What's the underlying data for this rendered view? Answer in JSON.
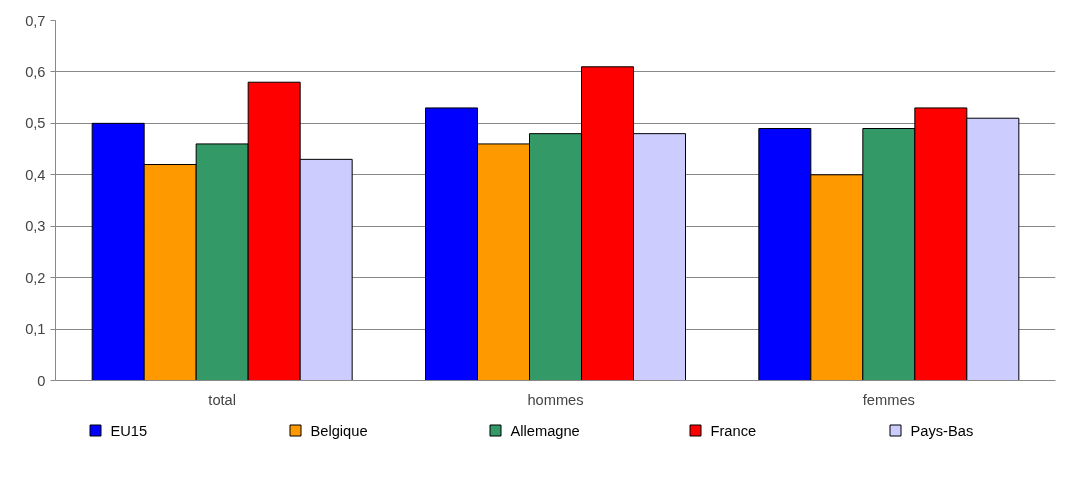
{
  "chart_data": {
    "type": "bar",
    "categories": [
      "total",
      "hommes",
      "femmes"
    ],
    "series": [
      {
        "name": "EU15",
        "color": "#0000ff",
        "values": [
          0.5,
          0.53,
          0.49
        ]
      },
      {
        "name": "Belgique",
        "color": "#ff9900",
        "values": [
          0.42,
          0.46,
          0.4
        ]
      },
      {
        "name": "Allemagne",
        "color": "#339966",
        "values": [
          0.46,
          0.48,
          0.49
        ]
      },
      {
        "name": "France",
        "color": "#ff0000",
        "values": [
          0.58,
          0.61,
          0.53
        ]
      },
      {
        "name": "Pays-Bas",
        "color": "#ccccff",
        "values": [
          0.43,
          0.48,
          0.51
        ]
      }
    ],
    "ylim": [
      0,
      0.7
    ],
    "yticks": [
      {
        "value": 0,
        "label": "0"
      },
      {
        "value": 0.1,
        "label": "0,1"
      },
      {
        "value": 0.2,
        "label": "0,2"
      },
      {
        "value": 0.3,
        "label": "0,3"
      },
      {
        "value": 0.4,
        "label": "0,4"
      },
      {
        "value": 0.5,
        "label": "0,5"
      },
      {
        "value": 0.6,
        "label": "0,6"
      },
      {
        "value": 0.7,
        "label": "0,7"
      }
    ],
    "grid": "y",
    "legend": "bottom"
  }
}
